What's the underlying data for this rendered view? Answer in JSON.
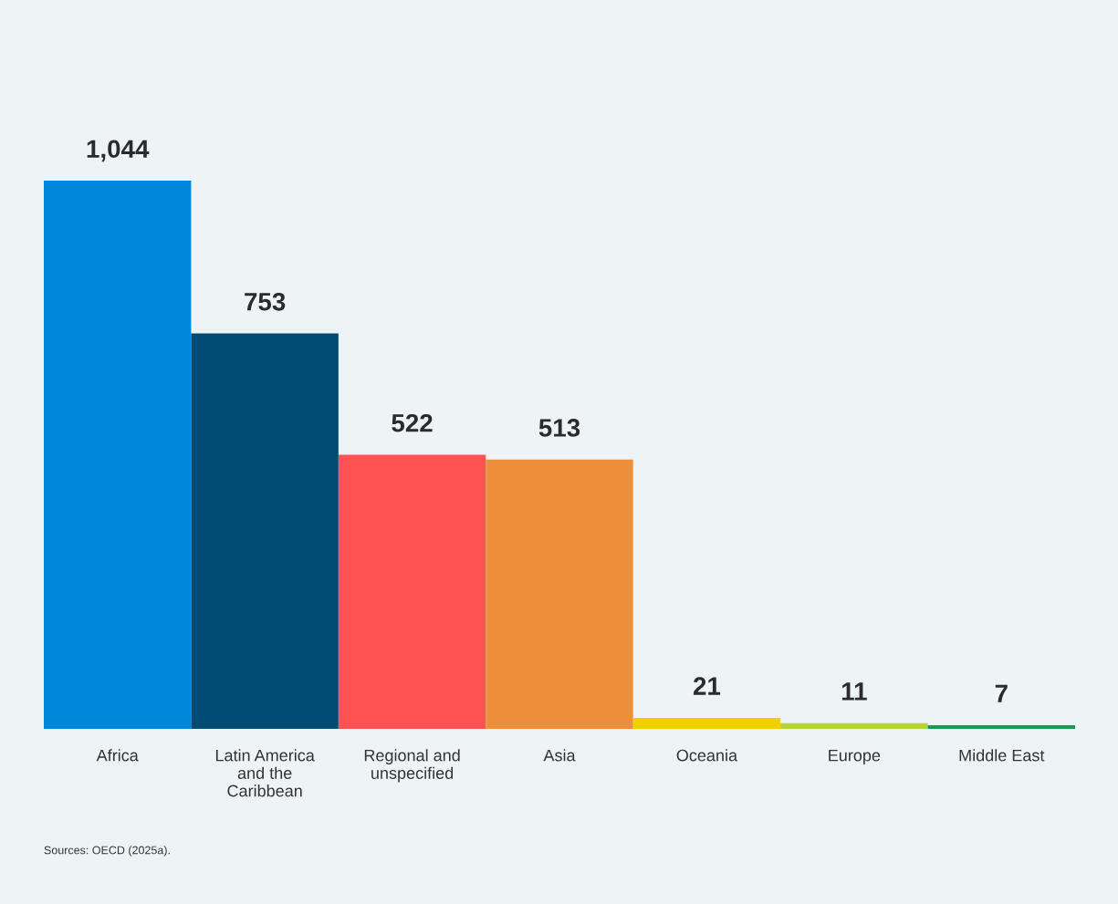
{
  "chart_data": {
    "type": "bar",
    "categories": [
      "Africa",
      "Latin America\nand the\nCaribbean",
      "Regional and\nunspecified",
      "Asia",
      "Oceania",
      "Europe",
      "Middle East"
    ],
    "values": [
      1044,
      753,
      522,
      513,
      21,
      11,
      7
    ],
    "colors": [
      "#0087dc",
      "#004b74",
      "#ff5252",
      "#ee8e3a",
      "#f2d000",
      "#b6d334",
      "#1a9b4f"
    ],
    "value_labels": [
      "1,044",
      "753",
      "522",
      "513",
      "21",
      "11",
      "7"
    ],
    "annotations": [
      "Sources: OECD (2025a)."
    ],
    "grid": false,
    "legend": false
  }
}
